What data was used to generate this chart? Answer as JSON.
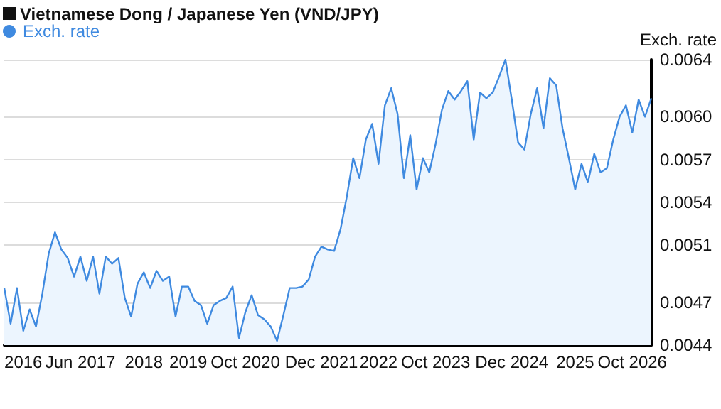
{
  "chart_data": {
    "type": "area",
    "title": "Vietnamese Dong / Japanese Yen (VND/JPY)",
    "ylabel": "Exch. rate",
    "legend": "top left",
    "grid": "y",
    "marker": "none",
    "categories": [
      null,
      null,
      null,
      "2016",
      null,
      null,
      null,
      null,
      null,
      null,
      null,
      null,
      "Jun 2017",
      null,
      null,
      null,
      null,
      null,
      null,
      null,
      null,
      null,
      "2018",
      null,
      null,
      null,
      null,
      null,
      null,
      "2019",
      null,
      null,
      null,
      null,
      null,
      null,
      null,
      null,
      "Oct 2020",
      null,
      null,
      null,
      null,
      null,
      null,
      null,
      null,
      null,
      null,
      null,
      "Dec 2021",
      null,
      null,
      null,
      null,
      null,
      null,
      null,
      null,
      "2022",
      null,
      null,
      null,
      null,
      null,
      null,
      null,
      null,
      "Oct 2023",
      null,
      null,
      null,
      null,
      null,
      null,
      null,
      null,
      null,
      null,
      null,
      "Dec 2024",
      null,
      null,
      null,
      null,
      null,
      null,
      null,
      null,
      null,
      "2025",
      null,
      null,
      null,
      null,
      null,
      null,
      null,
      null,
      "Oct 2026",
      null,
      null,
      null
    ],
    "ylim": [
      0.0044,
      0.0064
    ],
    "yticks": [
      {
        "value": 0.0044,
        "label": "0.0044"
      },
      {
        "value": 0.0047,
        "label": "0.0047"
      },
      {
        "value": 0.0051,
        "label": "0.0051"
      },
      {
        "value": 0.0054,
        "label": "0.0054"
      },
      {
        "value": 0.0057,
        "label": "0.0057"
      },
      {
        "value": 0.006,
        "label": "0.0060"
      },
      {
        "value": 0.0064,
        "label": "0.0064"
      }
    ],
    "series": [
      {
        "name": "Exch. rate",
        "color": "#3f8ae0",
        "values": [
          0.0048,
          0.00455,
          0.0048,
          0.0045,
          0.00465,
          0.00453,
          0.00476,
          0.00504,
          0.00519,
          0.00507,
          0.00501,
          0.00488,
          0.00502,
          0.00485,
          0.00502,
          0.00476,
          0.00502,
          0.00497,
          0.00501,
          0.00473,
          0.0046,
          0.00483,
          0.00491,
          0.0048,
          0.00492,
          0.00485,
          0.00488,
          0.0046,
          0.00481,
          0.00481,
          0.00471,
          0.00468,
          0.00455,
          0.00468,
          0.00471,
          0.00473,
          0.00481,
          0.00445,
          0.00463,
          0.00475,
          0.00461,
          0.00458,
          0.00453,
          0.00443,
          0.00461,
          0.0048,
          0.0048,
          0.00481,
          0.00486,
          0.00502,
          0.00509,
          0.00507,
          0.00506,
          0.00521,
          0.00544,
          0.00571,
          0.00557,
          0.00584,
          0.00595,
          0.00567,
          0.00608,
          0.0062,
          0.00602,
          0.00557,
          0.00587,
          0.00549,
          0.00571,
          0.00561,
          0.00581,
          0.00605,
          0.00618,
          0.00612,
          0.00618,
          0.00625,
          0.00584,
          0.00617,
          0.00613,
          0.00617,
          0.00628,
          0.0064,
          0.00612,
          0.00582,
          0.00577,
          0.00602,
          0.0062,
          0.00592,
          0.00627,
          0.00622,
          0.00592,
          0.00571,
          0.00549,
          0.00567,
          0.00554,
          0.00574,
          0.00561,
          0.00564,
          0.00584,
          0.006,
          0.00608,
          0.00589,
          0.00612,
          0.006,
          0.00613
        ]
      }
    ]
  }
}
